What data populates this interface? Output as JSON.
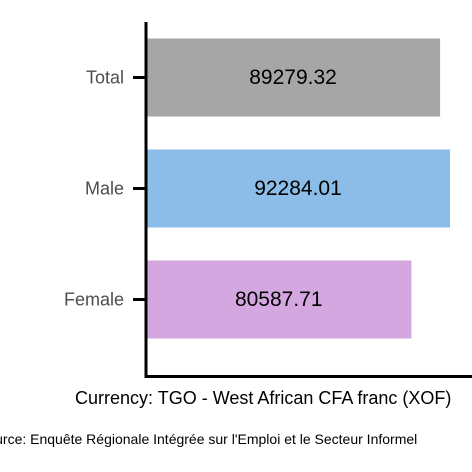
{
  "chart_data": {
    "type": "bar",
    "orientation": "horizontal",
    "categories": [
      "Total",
      "Male",
      "Female"
    ],
    "values": [
      89279.32,
      92284.01,
      80587.71
    ],
    "value_labels": [
      "89279.32",
      "92284.01",
      "80587.71"
    ],
    "colors": [
      "#a6a6a6",
      "#8cbde8",
      "#d5a7e1"
    ],
    "xlim": [
      0,
      92284.01
    ],
    "title": "",
    "xlabel": "Currency: TGO - West African CFA franc (XOF)",
    "ylabel": "",
    "grid": false,
    "legend": "none"
  },
  "caption": "Source: Enquête Régionale Intégrée sur l'Emploi et le Secteur Informel"
}
